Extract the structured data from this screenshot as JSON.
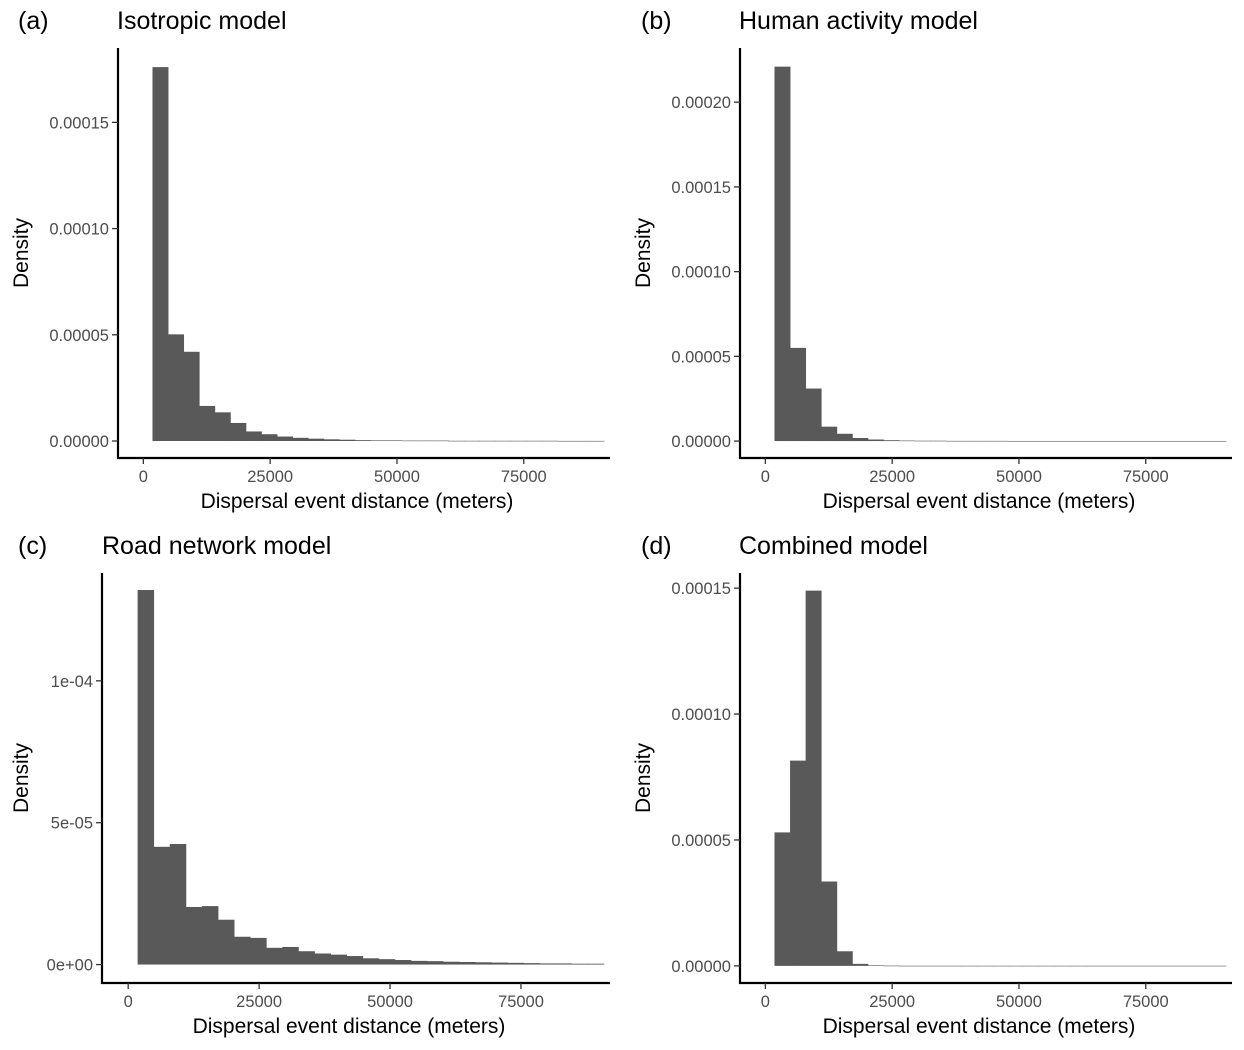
{
  "chart_data": [
    {
      "type": "bar",
      "tag": "(a)",
      "title": "Isotropic model",
      "xlabel": "Dispersal event distance (meters)",
      "ylabel": "Density",
      "xlim": [
        -5000,
        92000
      ],
      "ylim": [
        -8e-06,
        0.000185
      ],
      "xticks": [
        0,
        25000,
        50000,
        75000
      ],
      "xtick_labels": [
        "0",
        "25000",
        "50000",
        "75000"
      ],
      "yticks": [
        0,
        5e-05,
        0.0001,
        0.00015
      ],
      "ytick_labels": [
        "0.00000",
        "0.00005",
        "0.00010",
        "0.00015"
      ],
      "bin_start": 1800,
      "bin_width": 3070,
      "values": [
        0.000176,
        5.02e-05,
        4.2e-05,
        1.65e-05,
        1.35e-05,
        8.5e-06,
        4.5e-06,
        3.2e-06,
        2.1e-06,
        1.5e-06,
        1.1e-06,
        8e-07,
        6e-07,
        4e-07,
        3e-07,
        3e-07,
        2e-07,
        2e-07,
        2e-07,
        1e-07,
        1e-07,
        1e-07,
        1e-07,
        1e-07,
        1e-07,
        1e-07,
        5e-08,
        5e-08,
        5e-08
      ],
      "grid": false
    },
    {
      "type": "bar",
      "tag": "(b)",
      "title": "Human activity model",
      "xlabel": "Dispersal event distance (meters)",
      "ylabel": "Density",
      "xlim": [
        -5000,
        92000
      ],
      "ylim": [
        -1e-05,
        0.000232
      ],
      "xticks": [
        0,
        25000,
        50000,
        75000
      ],
      "xtick_labels": [
        "0",
        "25000",
        "50000",
        "75000"
      ],
      "yticks": [
        0,
        5e-05,
        0.0001,
        0.00015,
        0.0002
      ],
      "ytick_labels": [
        "0.00000",
        "0.00005",
        "0.00010",
        "0.00015",
        "0.00020"
      ],
      "bin_start": 1800,
      "bin_width": 3070,
      "values": [
        0.000221,
        5.5e-05,
        3.1e-05,
        8.5e-06,
        4.3e-06,
        1.8e-06,
        9e-07,
        5e-07,
        3e-07,
        2e-07,
        2e-07,
        1e-07,
        1e-07,
        1e-07,
        1e-07,
        5e-08,
        5e-08,
        5e-08,
        5e-08,
        5e-08,
        5e-08,
        5e-08,
        5e-08,
        5e-08,
        5e-08,
        5e-08,
        5e-08,
        5e-08,
        5e-08
      ],
      "grid": false
    },
    {
      "type": "bar",
      "tag": "(c)",
      "title": "Road network model",
      "xlabel": "Dispersal event distance (meters)",
      "ylabel": "Density",
      "xlim": [
        -5000,
        92000
      ],
      "ylim": [
        -6.5e-06,
        0.000138
      ],
      "xticks": [
        0,
        25000,
        50000,
        75000
      ],
      "xtick_labels": [
        "0",
        "25000",
        "50000",
        "75000"
      ],
      "yticks": [
        0,
        5e-05,
        0.0001
      ],
      "ytick_labels": [
        "0e+00",
        "5e-05",
        "1e-04"
      ],
      "bin_start": 1800,
      "bin_width": 3070,
      "values": [
        0.000132,
        4.15e-05,
        4.25e-05,
        2.03e-05,
        2.06e-05,
        1.58e-05,
        9.8e-06,
        9.4e-06,
        5.9e-06,
        6.2e-06,
        4.7e-06,
        3.9e-06,
        3.5e-06,
        3e-06,
        2.2e-06,
        1.9e-06,
        1.6e-06,
        1.3e-06,
        1.2e-06,
        1e-06,
        9e-07,
        8e-07,
        7e-07,
        6e-07,
        5e-07,
        4e-07,
        4e-07,
        3e-07,
        3e-07
      ],
      "grid": false
    },
    {
      "type": "bar",
      "tag": "(d)",
      "title": "Combined model",
      "xlabel": "Dispersal event distance (meters)",
      "ylabel": "Density",
      "xlim": [
        -5000,
        92000
      ],
      "ylim": [
        -6.8e-06,
        0.000156
      ],
      "xticks": [
        0,
        25000,
        50000,
        75000
      ],
      "xtick_labels": [
        "0",
        "25000",
        "50000",
        "75000"
      ],
      "yticks": [
        0,
        5e-05,
        0.0001,
        0.00015
      ],
      "ytick_labels": [
        "0.00000",
        "0.00005",
        "0.00010",
        "0.00015"
      ],
      "bin_start": 1800,
      "bin_width": 3070,
      "values": [
        5.3e-05,
        8.15e-05,
        0.000149,
        3.35e-05,
        5.8e-06,
        8e-07,
        2e-07,
        1e-07,
        5e-08,
        5e-08,
        5e-08,
        5e-08,
        5e-08,
        5e-08,
        5e-08,
        5e-08,
        5e-08,
        5e-08,
        5e-08,
        5e-08,
        5e-08,
        5e-08,
        5e-08,
        5e-08,
        5e-08,
        5e-08,
        5e-08,
        5e-08,
        5e-08
      ],
      "grid": false
    }
  ],
  "colors": {
    "bar_fill": "#595959",
    "axis": "#000000",
    "tick_label": "#4d4d4d",
    "background": "#ffffff"
  }
}
